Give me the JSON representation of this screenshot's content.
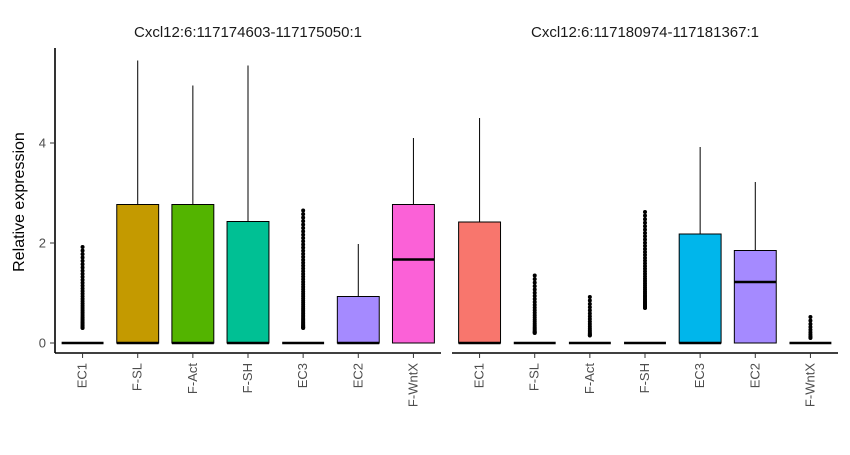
{
  "chart_data": {
    "type": "box",
    "ylabel": "Relative expression",
    "y_ticks": [
      0,
      2,
      4
    ],
    "ylim": [
      -0.2,
      5.9
    ],
    "grid": false,
    "legend": "none",
    "panels": [
      {
        "title": "Cxcl12:6:117174603-117175050:1",
        "categories": [
          "EC1",
          "F-SL",
          "F-Act",
          "F-SH",
          "EC3",
          "EC2",
          "F-WntX"
        ],
        "colors": [
          "#F8766D",
          "#C49A00",
          "#53B400",
          "#00C094",
          "#00B6EB",
          "#A58AFF",
          "#FB61D7"
        ],
        "boxes": [
          {
            "q1": 0,
            "median": 0,
            "q3": 0,
            "low": 0,
            "high": 0,
            "outlier_range": [
              0.3,
              1.92
            ]
          },
          {
            "q1": 0,
            "median": 0,
            "q3": 2.77,
            "low": 0,
            "high": 5.65,
            "outlier_range": null
          },
          {
            "q1": 0,
            "median": 0,
            "q3": 2.77,
            "low": 0,
            "high": 5.15,
            "outlier_range": null
          },
          {
            "q1": 0,
            "median": 0,
            "q3": 2.43,
            "low": 0,
            "high": 5.55,
            "outlier_range": null
          },
          {
            "q1": 0,
            "median": 0,
            "q3": 0,
            "low": 0,
            "high": 0,
            "outlier_range": [
              0.3,
              2.65
            ]
          },
          {
            "q1": 0,
            "median": 0,
            "q3": 0.93,
            "low": 0,
            "high": 1.98,
            "outlier_range": null
          },
          {
            "q1": 0,
            "median": 1.67,
            "q3": 2.77,
            "low": 0,
            "high": 4.1,
            "outlier_range": null
          }
        ]
      },
      {
        "title": "Cxcl12:6:117180974-117181367:1",
        "categories": [
          "EC1",
          "F-SL",
          "F-Act",
          "F-SH",
          "EC3",
          "EC2",
          "F-WntX"
        ],
        "colors": [
          "#F8766D",
          "#C49A00",
          "#53B400",
          "#00C094",
          "#00B6EB",
          "#A58AFF",
          "#FB61D7"
        ],
        "boxes": [
          {
            "q1": 0,
            "median": 0,
            "q3": 2.42,
            "low": 0,
            "high": 4.5,
            "outlier_range": null
          },
          {
            "q1": 0,
            "median": 0,
            "q3": 0,
            "low": 0,
            "high": 0,
            "outlier_range": [
              0.2,
              1.35
            ]
          },
          {
            "q1": 0,
            "median": 0,
            "q3": 0,
            "low": 0,
            "high": 0,
            "outlier_range": [
              0.15,
              0.92
            ]
          },
          {
            "q1": 0,
            "median": 0,
            "q3": 0,
            "low": 0,
            "high": 0,
            "outlier_range": [
              0.7,
              2.62
            ]
          },
          {
            "q1": 0,
            "median": 0,
            "q3": 2.18,
            "low": 0,
            "high": 3.92,
            "outlier_range": null
          },
          {
            "q1": 0,
            "median": 1.22,
            "q3": 1.85,
            "low": 0,
            "high": 3.22,
            "outlier_range": null
          },
          {
            "q1": 0,
            "median": 0,
            "q3": 0,
            "low": 0,
            "high": 0,
            "outlier_range": [
              0.1,
              0.52
            ]
          }
        ]
      }
    ]
  }
}
